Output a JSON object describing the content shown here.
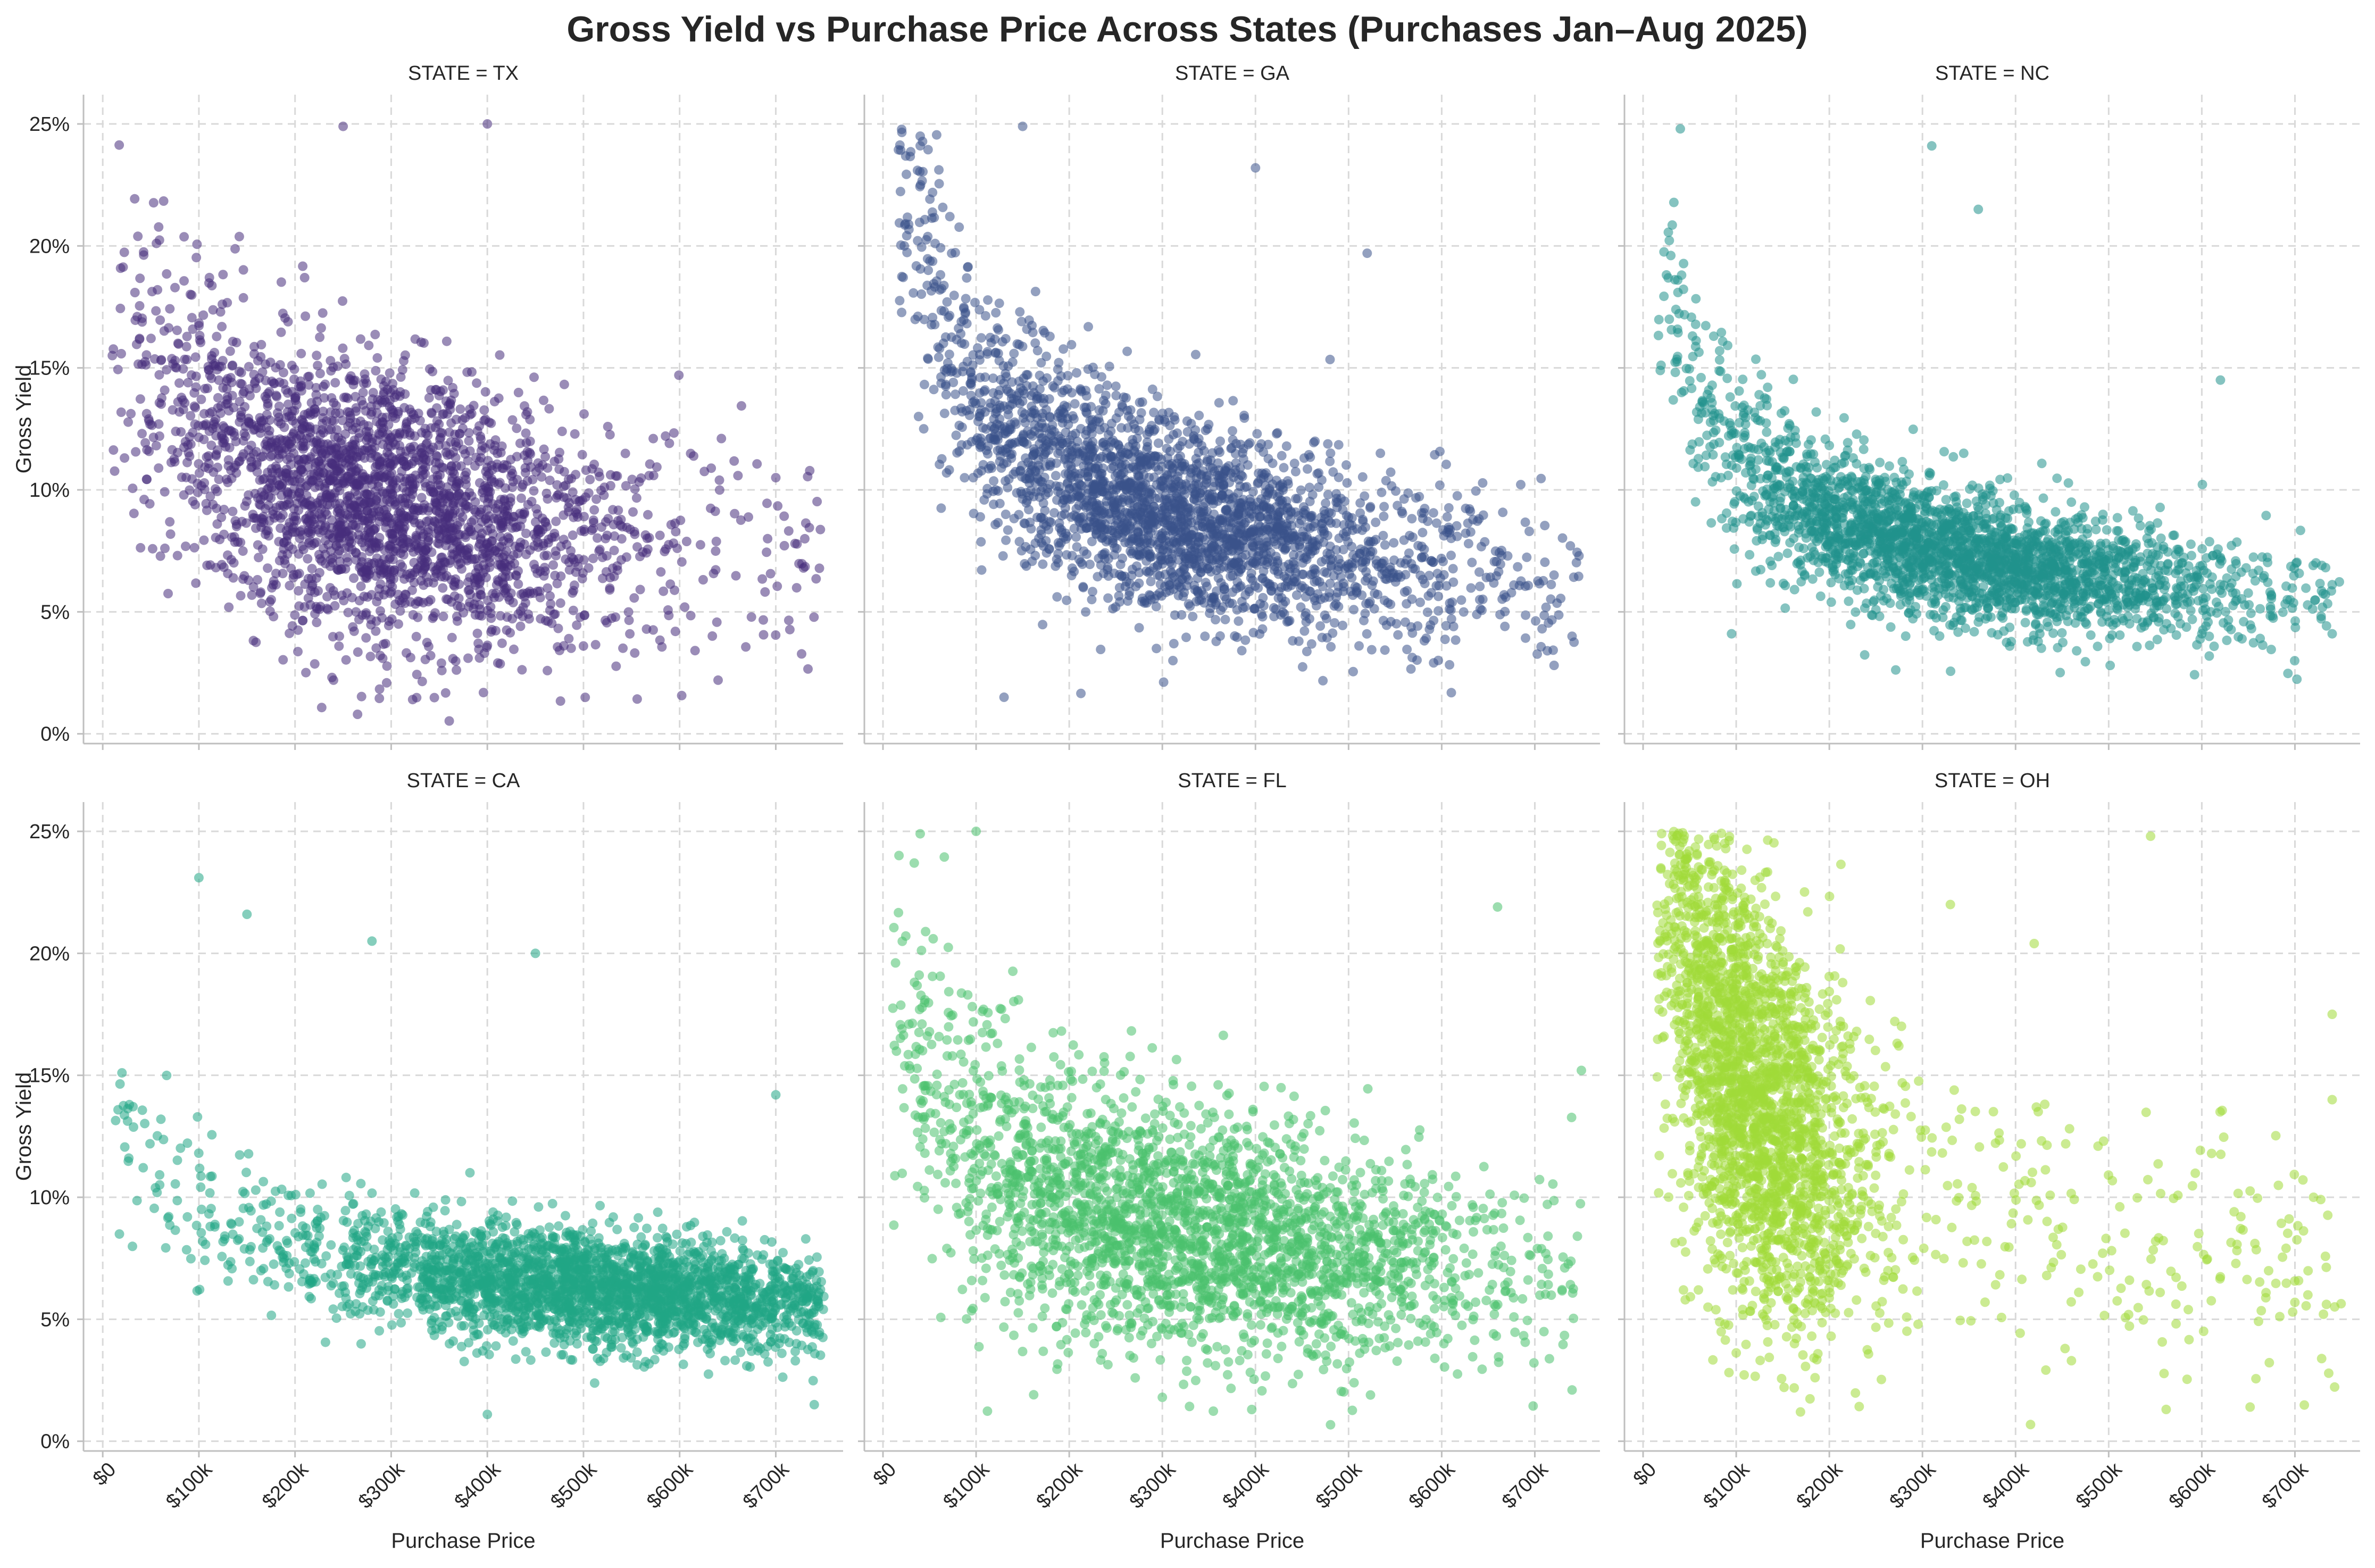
{
  "chart_data": {
    "type": "scatter",
    "title": "Gross Yield vs Purchase Price Across States (Purchases Jan–Aug 2025)",
    "xlabel": "Purchase Price",
    "ylabel": "Gross Yield",
    "xlim": [
      -20000,
      770000
    ],
    "ylim": [
      -0.004,
      0.262
    ],
    "x_ticks": [
      0,
      100000,
      200000,
      300000,
      400000,
      500000,
      600000,
      700000
    ],
    "x_tick_labels": [
      "$0",
      "$100k",
      "$200k",
      "$300k",
      "$400k",
      "$500k",
      "$600k",
      "$700k"
    ],
    "y_ticks": [
      0,
      0.05,
      0.1,
      0.15,
      0.2,
      0.25
    ],
    "y_tick_labels": [
      "0%",
      "5%",
      "10%",
      "15%",
      "20%",
      "25%"
    ],
    "grid": true,
    "facets": [
      {
        "title": "STATE = TX",
        "color": "#472d7b",
        "cluster": {
          "price_min": 10000,
          "price_max": 750000,
          "price_center": 290000,
          "price_spread": 120000,
          "yield_at_100k": 0.125,
          "yield_at_700k": 0.075,
          "yield_noise": 0.022
        },
        "points": [
          [
            265000,
            0.008
          ],
          [
            240000,
            0.022
          ],
          [
            400000,
            0.25
          ],
          [
            250000,
            0.249
          ],
          [
            500000,
            0.036
          ],
          [
            640000,
            0.022
          ],
          [
            380000,
            0.031
          ],
          [
            720000,
            0.078
          ],
          [
            700000,
            0.105
          ]
        ]
      },
      {
        "title": "STATE = GA",
        "color": "#3b528b",
        "cluster": {
          "price_min": 15000,
          "price_max": 750000,
          "price_center": 300000,
          "price_spread": 140000,
          "yield_at_100k": 0.14,
          "yield_at_700k": 0.065,
          "yield_noise": 0.018
        },
        "points": [
          [
            130000,
            0.015
          ],
          [
            150000,
            0.249
          ],
          [
            400000,
            0.232
          ],
          [
            520000,
            0.197
          ],
          [
            740000,
            0.04
          ],
          [
            40000,
            0.245
          ]
        ]
      },
      {
        "title": "STATE = NC",
        "color": "#21918c",
        "cluster": {
          "price_min": 15000,
          "price_max": 750000,
          "price_center": 330000,
          "price_spread": 150000,
          "yield_at_100k": 0.115,
          "yield_at_700k": 0.056,
          "yield_noise": 0.012
        },
        "points": [
          [
            95000,
            0.041
          ],
          [
            310000,
            0.241
          ],
          [
            360000,
            0.215
          ],
          [
            740000,
            0.041
          ],
          [
            620000,
            0.145
          ],
          [
            40000,
            0.248
          ]
        ]
      },
      {
        "title": "STATE = CA",
        "color": "#21a685",
        "cluster": {
          "price_min": 10000,
          "price_max": 750000,
          "price_center": 520000,
          "price_spread": 160000,
          "yield_at_100k": 0.095,
          "yield_at_700k": 0.058,
          "yield_noise": 0.01
        },
        "points": [
          [
            100000,
            0.231
          ],
          [
            150000,
            0.216
          ],
          [
            280000,
            0.205
          ],
          [
            450000,
            0.2
          ],
          [
            400000,
            0.011
          ],
          [
            20000,
            0.151
          ],
          [
            740000,
            0.015
          ],
          [
            700000,
            0.142
          ]
        ]
      },
      {
        "title": "STATE = FL",
        "color": "#4ac16d",
        "cluster": {
          "price_min": 10000,
          "price_max": 750000,
          "price_center": 320000,
          "price_spread": 160000,
          "yield_at_100k": 0.12,
          "yield_at_700k": 0.068,
          "yield_noise": 0.02
        },
        "points": [
          [
            40000,
            0.249
          ],
          [
            100000,
            0.25
          ],
          [
            750000,
            0.152
          ],
          [
            740000,
            0.021
          ],
          [
            660000,
            0.219
          ],
          [
            300000,
            0.018
          ]
        ]
      },
      {
        "title": "STATE = OH",
        "color": "#a0da39",
        "cluster": {
          "price_min": 15000,
          "price_max": 750000,
          "price_center": 110000,
          "price_spread": 60000,
          "yield_at_100k": 0.15,
          "yield_at_700k": 0.07,
          "yield_noise": 0.03
        },
        "points": [
          [
            545000,
            0.248
          ],
          [
            420000,
            0.204
          ],
          [
            330000,
            0.22
          ],
          [
            740000,
            0.175
          ],
          [
            740000,
            0.14
          ],
          [
            460000,
            0.033
          ],
          [
            720000,
            0.1
          ]
        ]
      }
    ]
  }
}
